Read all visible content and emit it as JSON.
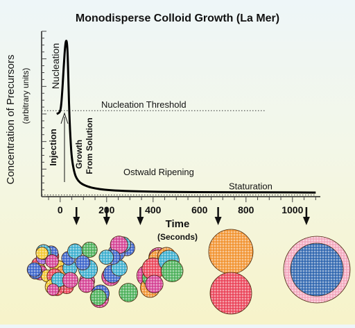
{
  "chart_data": {
    "type": "line",
    "title": "Monodisperse Colloid Growth (La Mer)",
    "ylabel": "Concentration of Precursors",
    "ylabel_sub": "(arbitrary units)",
    "xlabel": "Time",
    "xlabel_sub": "(Seconds)",
    "xlim": [
      -80,
      1120
    ],
    "ylim": [
      0,
      10
    ],
    "xticks": [
      0,
      200,
      400,
      600,
      800,
      1000
    ],
    "grid": false,
    "legend": "none",
    "series": [
      {
        "x": [
          -15,
          0,
          5,
          10,
          15,
          20,
          25,
          30,
          33,
          36,
          40,
          45,
          50,
          60,
          70,
          85,
          100,
          120,
          150,
          190,
          250,
          350,
          500,
          700,
          900,
          1100
        ],
        "y": [
          5.0,
          5.1,
          5.6,
          6.6,
          7.8,
          8.9,
          9.5,
          9.3,
          8.2,
          6.6,
          4.8,
          3.3,
          2.3,
          1.5,
          1.1,
          0.85,
          0.72,
          0.6,
          0.5,
          0.42,
          0.36,
          0.31,
          0.28,
          0.27,
          0.26,
          0.25
        ]
      }
    ],
    "reference_lines": [
      {
        "label": "Nucleation Threshold",
        "y": 5.2,
        "x_end": 880
      },
      {
        "label": "Staturation",
        "y": 0.1,
        "x_end": 1100
      }
    ],
    "annotations": {
      "nucleation": "Nucleation",
      "injection": "Injection",
      "growth": [
        "Growth",
        "From Solution"
      ],
      "ripening": "Ostwald Ripening"
    },
    "stage_arrow_times": [
      70,
      200,
      345,
      680,
      1060
    ],
    "colors": {
      "curve": "#000000",
      "dashed": "#333333",
      "orange": "#f08a1e",
      "red": "#e8334a",
      "magenta": "#d0308a",
      "blue": "#2a56c6",
      "green": "#3aa84a",
      "cyan": "#29a6c9",
      "pink": "#f2a0b8",
      "navy": "#1e5aa8"
    }
  }
}
